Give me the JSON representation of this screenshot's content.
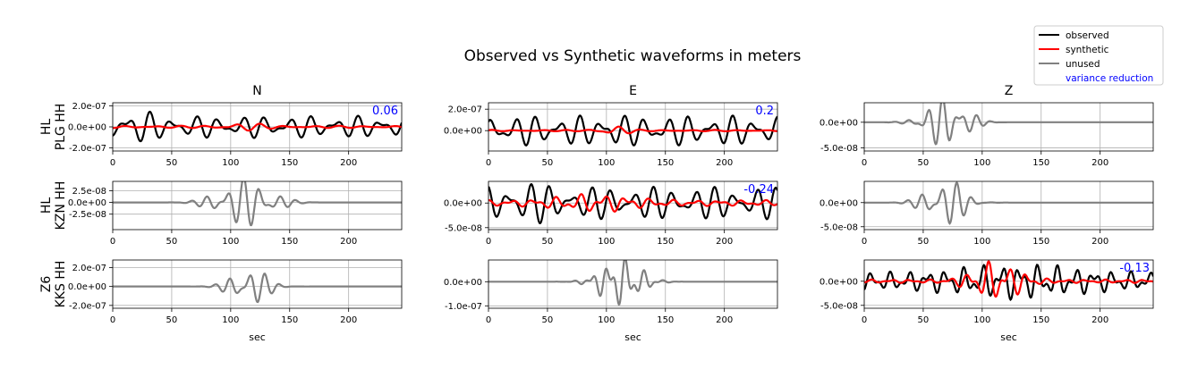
{
  "title": "Observed vs Synthetic waveforms in meters",
  "columns": [
    "N",
    "E",
    "Z"
  ],
  "x_label": "sec",
  "legend": {
    "placement": "top-right",
    "entries": [
      {
        "label": "observed",
        "color": "#000000"
      },
      {
        "label": "synthetic",
        "color": "#ff0000"
      },
      {
        "label": "unused",
        "color": "#808080"
      },
      {
        "label": "variance reduction",
        "color": "#0000ff",
        "text_only": true
      }
    ]
  },
  "chart_data": [
    {
      "type": "line",
      "station": [
        "HL",
        "PLG HH"
      ],
      "component": "N",
      "status": "used",
      "xlim": [
        0,
        245
      ],
      "ylim": [
        -2.3e-07,
        2.3e-07
      ],
      "x_ticks": [
        0,
        50,
        100,
        150,
        200
      ],
      "y_ticks": [
        {
          "value": 2e-07,
          "label": "2.0e-07"
        },
        {
          "value": 0,
          "label": "0.0e+00"
        },
        {
          "value": -2e-07,
          "label": "-2.0e-07"
        }
      ],
      "variance_reduction": "0.06",
      "grid": true
    },
    {
      "type": "line",
      "station": [
        "HL",
        "PLG HH"
      ],
      "component": "E",
      "status": "used",
      "xlim": [
        0,
        245
      ],
      "ylim": [
        -1.9e-07,
        2.6e-07
      ],
      "x_ticks": [
        0,
        50,
        100,
        150,
        200
      ],
      "y_ticks": [
        {
          "value": 2e-07,
          "label": "2.0e-07"
        },
        {
          "value": 0,
          "label": "0.0e+00"
        }
      ],
      "variance_reduction": "0.2",
      "grid": true
    },
    {
      "type": "line",
      "station": [
        "HL",
        "PLG HH"
      ],
      "component": "Z",
      "status": "unused",
      "xlim": [
        0,
        245
      ],
      "ylim": [
        -5.6e-08,
        3.8e-08
      ],
      "x_ticks": [
        0,
        50,
        100,
        150,
        200
      ],
      "y_ticks": [
        {
          "value": 0,
          "label": "0.0e+00"
        },
        {
          "value": -5e-08,
          "label": "-5.0e-08"
        }
      ],
      "variance_reduction": "",
      "grid": true
    },
    {
      "type": "line",
      "station": [
        "HL",
        "KZN HH"
      ],
      "component": "N",
      "status": "unused",
      "xlim": [
        0,
        245
      ],
      "ylim": [
        -5.8e-08,
        4.5e-08
      ],
      "x_ticks": [
        0,
        50,
        100,
        150,
        200
      ],
      "y_ticks": [
        {
          "value": 2.5e-08,
          "label": "2.5e-08"
        },
        {
          "value": 0,
          "label": "0.0e+00"
        },
        {
          "value": -2.5e-08,
          "label": "-2.5e-08"
        }
      ],
      "variance_reduction": "",
      "grid": true
    },
    {
      "type": "line",
      "station": [
        "HL",
        "KZN HH"
      ],
      "component": "E",
      "status": "used",
      "xlim": [
        0,
        245
      ],
      "ylim": [
        -5.4e-08,
        4.4e-08
      ],
      "x_ticks": [
        0,
        50,
        100,
        150,
        200
      ],
      "y_ticks": [
        {
          "value": 0,
          "label": "0.0e+00"
        },
        {
          "value": -5e-08,
          "label": "-5.0e-08"
        }
      ],
      "variance_reduction": "-0.24",
      "grid": true
    },
    {
      "type": "line",
      "station": [
        "HL",
        "KZN HH"
      ],
      "component": "Z",
      "status": "unused",
      "xlim": [
        0,
        245
      ],
      "ylim": [
        -5.6e-08,
        4.4e-08
      ],
      "x_ticks": [
        0,
        50,
        100,
        150,
        200
      ],
      "y_ticks": [
        {
          "value": 0,
          "label": "0.0e+00"
        },
        {
          "value": -5e-08,
          "label": "-5.0e-08"
        }
      ],
      "variance_reduction": "",
      "grid": true
    },
    {
      "type": "line",
      "station": [
        "Z6",
        "KKS HH"
      ],
      "component": "N",
      "status": "unused",
      "xlim": [
        0,
        245
      ],
      "ylim": [
        -2.3e-07,
        2.8e-07
      ],
      "x_ticks": [
        0,
        50,
        100,
        150,
        200
      ],
      "y_ticks": [
        {
          "value": 2e-07,
          "label": "2.0e-07"
        },
        {
          "value": 0,
          "label": "0.0e+00"
        },
        {
          "value": -2e-07,
          "label": "-2.0e-07"
        }
      ],
      "variance_reduction": "",
      "grid": true
    },
    {
      "type": "line",
      "station": [
        "Z6",
        "KKS HH"
      ],
      "component": "E",
      "status": "unused",
      "xlim": [
        0,
        245
      ],
      "ylim": [
        -1.1e-07,
        9e-08
      ],
      "x_ticks": [
        0,
        50,
        100,
        150,
        200
      ],
      "y_ticks": [
        {
          "value": 0,
          "label": "0.0e+00"
        },
        {
          "value": -1e-07,
          "label": "-1.0e-07"
        }
      ],
      "variance_reduction": "",
      "grid": true
    },
    {
      "type": "line",
      "station": [
        "Z6",
        "KKS HH"
      ],
      "component": "Z",
      "status": "used",
      "xlim": [
        0,
        245
      ],
      "ylim": [
        -5.6e-08,
        4.4e-08
      ],
      "x_ticks": [
        0,
        50,
        100,
        150,
        200
      ],
      "y_ticks": [
        {
          "value": 0,
          "label": "0.0e+00"
        },
        {
          "value": -5e-08,
          "label": "-5.0e-08"
        }
      ],
      "variance_reduction": "-0.13",
      "grid": true
    }
  ]
}
